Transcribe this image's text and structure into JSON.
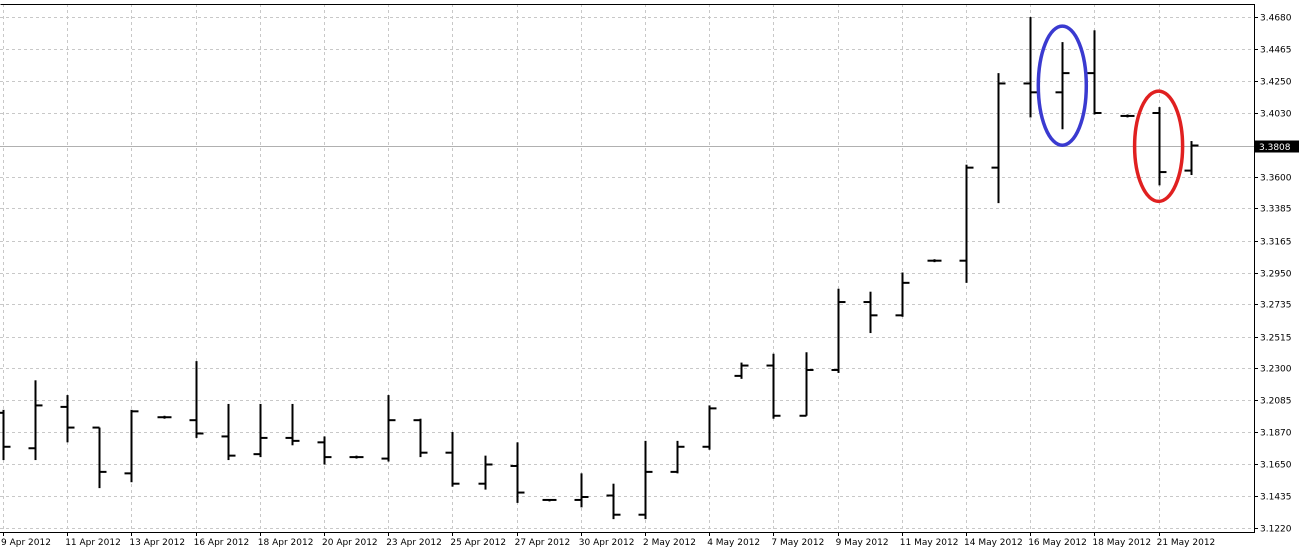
{
  "chart_data": {
    "type": "ohlc",
    "title": "",
    "xlabel": "",
    "ylabel": "",
    "ylim": [
      3.112,
      3.478
    ],
    "grid": true,
    "yticks": [
      "3.4680",
      "3.4465",
      "3.4250",
      "3.4030",
      "3.3600",
      "3.3385",
      "3.3165",
      "3.2950",
      "3.2735",
      "3.2515",
      "3.2300",
      "3.2085",
      "3.1870",
      "3.1650",
      "3.1435",
      "3.1220"
    ],
    "xtick_labels": [
      "9 Apr 2012",
      "11 Apr 2012",
      "13 Apr 2012",
      "16 Apr 2012",
      "18 Apr 2012",
      "20 Apr 2012",
      "23 Apr 2012",
      "25 Apr 2012",
      "27 Apr 2012",
      "30 Apr 2012",
      "2 May 2012",
      "4 May 2012",
      "7 May 2012",
      "9 May 2012",
      "11 May 2012",
      "14 May 2012",
      "16 May 2012",
      "18 May 2012",
      "21 May 2012"
    ],
    "current_price": "3.3808",
    "bars": [
      {
        "o": 3.2,
        "h": 3.202,
        "l": 3.168,
        "c": 3.177
      },
      {
        "o": 3.176,
        "h": 3.222,
        "l": 3.168,
        "c": 3.205
      },
      {
        "o": 3.204,
        "h": 3.212,
        "l": 3.18,
        "c": 3.19
      },
      {
        "o": 3.19,
        "h": 3.19,
        "l": 3.149,
        "c": 3.16
      },
      {
        "o": 3.159,
        "h": 3.202,
        "l": 3.153,
        "c": 3.201
      },
      {
        "o": 3.197,
        "h": 3.198,
        "l": 3.196,
        "c": 3.197
      },
      {
        "o": 3.195,
        "h": 3.235,
        "l": 3.183,
        "c": 3.186
      },
      {
        "o": 3.184,
        "h": 3.206,
        "l": 3.168,
        "c": 3.171
      },
      {
        "o": 3.172,
        "h": 3.206,
        "l": 3.17,
        "c": 3.183
      },
      {
        "o": 3.183,
        "h": 3.206,
        "l": 3.178,
        "c": 3.181
      },
      {
        "o": 3.18,
        "h": 3.184,
        "l": 3.165,
        "c": 3.17
      },
      {
        "o": 3.17,
        "h": 3.171,
        "l": 3.169,
        "c": 3.17
      },
      {
        "o": 3.169,
        "h": 3.212,
        "l": 3.167,
        "c": 3.195
      },
      {
        "o": 3.195,
        "h": 3.196,
        "l": 3.17,
        "c": 3.173
      },
      {
        "o": 3.173,
        "h": 3.187,
        "l": 3.15,
        "c": 3.152
      },
      {
        "o": 3.152,
        "h": 3.171,
        "l": 3.148,
        "c": 3.165
      },
      {
        "o": 3.164,
        "h": 3.18,
        "l": 3.139,
        "c": 3.146
      },
      {
        "o": 3.141,
        "h": 3.141,
        "l": 3.14,
        "c": 3.141
      },
      {
        "o": 3.141,
        "h": 3.159,
        "l": 3.136,
        "c": 3.143
      },
      {
        "o": 3.144,
        "h": 3.152,
        "l": 3.128,
        "c": 3.131
      },
      {
        "o": 3.131,
        "h": 3.181,
        "l": 3.128,
        "c": 3.16
      },
      {
        "o": 3.16,
        "h": 3.181,
        "l": 3.159,
        "c": 3.177
      },
      {
        "o": 3.177,
        "h": 3.205,
        "l": 3.175,
        "c": 3.203
      },
      {
        "o": 3.225,
        "h": 3.234,
        "l": 3.223,
        "c": 3.232
      },
      {
        "o": 3.232,
        "h": 3.24,
        "l": 3.196,
        "c": 3.198
      },
      {
        "o": 3.198,
        "h": 3.241,
        "l": 3.198,
        "c": 3.229
      },
      {
        "o": 3.229,
        "h": 3.284,
        "l": 3.227,
        "c": 3.275
      },
      {
        "o": 3.275,
        "h": 3.282,
        "l": 3.254,
        "c": 3.266
      },
      {
        "o": 3.266,
        "h": 3.295,
        "l": 3.265,
        "c": 3.288
      },
      {
        "o": 3.303,
        "h": 3.304,
        "l": 3.302,
        "c": 3.303
      },
      {
        "o": 3.303,
        "h": 3.368,
        "l": 3.288,
        "c": 3.366
      },
      {
        "o": 3.366,
        "h": 3.43,
        "l": 3.342,
        "c": 3.423
      },
      {
        "o": 3.423,
        "h": 3.468,
        "l": 3.4,
        "c": 3.417
      },
      {
        "o": 3.417,
        "h": 3.451,
        "l": 3.392,
        "c": 3.43
      },
      {
        "o": 3.43,
        "h": 3.459,
        "l": 3.402,
        "c": 3.403
      },
      {
        "o": 3.401,
        "h": 3.402,
        "l": 3.4,
        "c": 3.401
      },
      {
        "o": 3.403,
        "h": 3.407,
        "l": 3.354,
        "c": 3.363
      },
      {
        "o": 3.364,
        "h": 3.384,
        "l": 3.361,
        "c": 3.381
      }
    ],
    "annotations": [
      {
        "shape": "ellipse",
        "color": "#3a3ad0",
        "around_bar": 33
      },
      {
        "shape": "ellipse",
        "color": "#e02020",
        "around_bar": 36
      }
    ],
    "colors": {
      "bars": "#000000",
      "grid": "#c8c8c8",
      "price_line": "#b0b0b0"
    }
  }
}
